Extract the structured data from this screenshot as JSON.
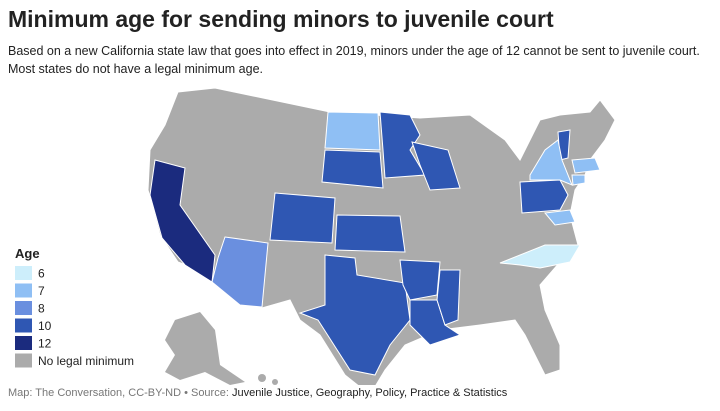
{
  "title": "Minimum age for sending minors to juvenile court",
  "subtitle": "Based on a new California state law that goes into effect in 2019, minors under the age of 12 cannot be sent to juvenile court. Most states do not have a legal minimum age.",
  "legend": {
    "title": "Age",
    "items": [
      {
        "value": 6,
        "color": "#cdeefb"
      },
      {
        "value": 7,
        "color": "#8fbff4"
      },
      {
        "value": 8,
        "color": "#6a8fdf"
      },
      {
        "value": 10,
        "color": "#2f57b3"
      },
      {
        "value": 12,
        "color": "#1b2b7e"
      },
      {
        "label": "No legal minimum",
        "color": "#ababab"
      }
    ]
  },
  "regions": [
    {
      "age": 12
    },
    {
      "age": 8
    },
    {
      "age": 10
    },
    {
      "age": 10
    },
    {
      "age": 10
    },
    {
      "age": 7
    },
    {
      "age": 10
    },
    {
      "age": 10
    },
    {
      "age": 10
    },
    {
      "age": 10
    },
    {
      "age": 10
    },
    {
      "age": 10
    },
    {
      "age": 10
    },
    {
      "age": 10
    },
    {
      "age": 7
    },
    {
      "age": 7
    },
    {
      "age": 7
    },
    {
      "age": 7
    },
    {
      "age": 6
    }
  ],
  "footer": {
    "credit": "Map: The Conversation, CC-BY-ND • Source:",
    "source": "Juvenile Justice, Geography, Policy, Practice & Statistics"
  }
}
